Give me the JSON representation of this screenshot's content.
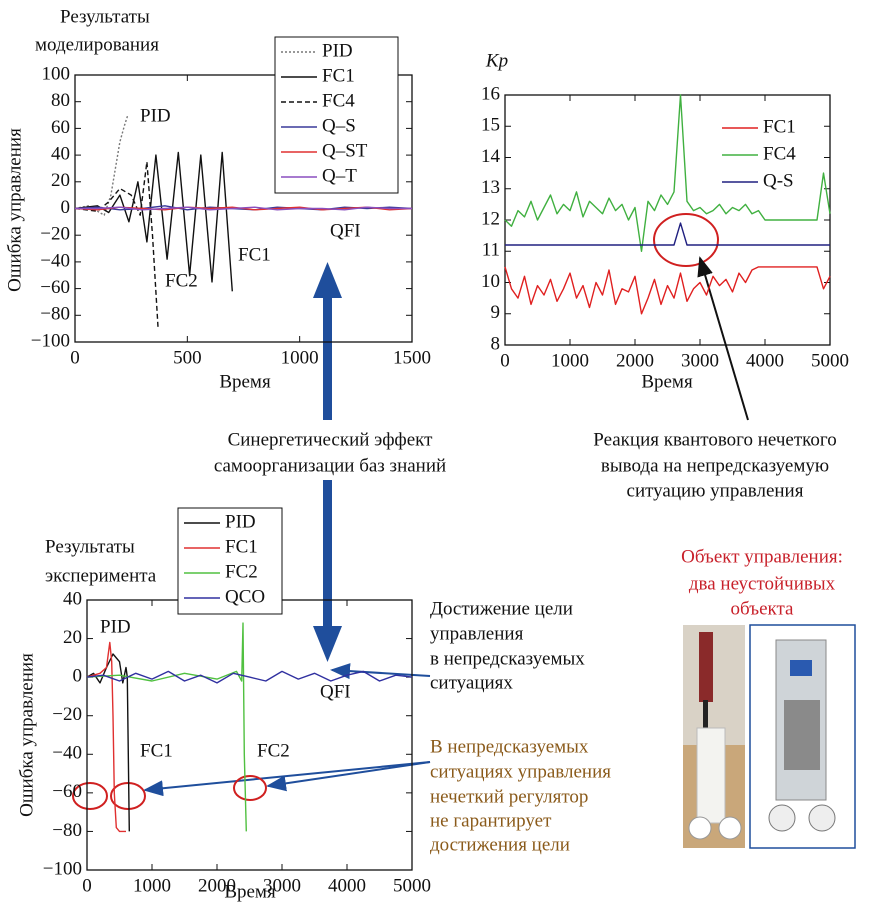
{
  "chart_data": [
    {
      "type": "line",
      "title": [
        "Результаты",
        "моделирования"
      ],
      "ylabel": "Ошибка управления",
      "xlabel": "Время",
      "xlim": [
        0,
        1500
      ],
      "ylim": [
        -100,
        100
      ],
      "xticks": [
        0,
        500,
        1000,
        1500
      ],
      "yticks": [
        {
          "value": -100,
          "label": "−100"
        },
        {
          "value": -80,
          "label": "−80"
        },
        {
          "value": -60,
          "label": "−60"
        },
        {
          "value": -40,
          "label": "−40"
        },
        {
          "value": -20,
          "label": "−20"
        },
        0,
        20,
        40,
        60,
        80,
        100
      ],
      "legend": "upper right",
      "legend_box": true,
      "annotations": [
        "PID",
        "FC1",
        "FC2",
        "QFI"
      ],
      "series": [
        {
          "name": "PID",
          "color": "#777777",
          "style": "dotted",
          "x": [
            0,
            60,
            100,
            130,
            160,
            180,
            200,
            220,
            235
          ],
          "values": [
            0,
            2,
            -2,
            -5,
            10,
            30,
            50,
            62,
            70
          ]
        },
        {
          "name": "FC1",
          "color": "#111111",
          "style": "solid",
          "x": [
            0,
            100,
            150,
            200,
            240,
            280,
            320,
            360,
            410,
            460,
            510,
            560,
            610,
            655,
            700
          ],
          "values": [
            0,
            2,
            -3,
            10,
            -10,
            20,
            -25,
            40,
            -38,
            42,
            -50,
            40,
            -55,
            42,
            -62
          ]
        },
        {
          "name": "FC4",
          "color": "#111111",
          "style": "dashed",
          "x": [
            0,
            100,
            150,
            200,
            250,
            290,
            320,
            345,
            370
          ],
          "values": [
            0,
            -2,
            5,
            15,
            10,
            -5,
            35,
            -20,
            -90
          ]
        },
        {
          "name": "Q–S",
          "color": "#3a3a9a",
          "style": "solid",
          "x": [
            0,
            100,
            200,
            300,
            400,
            500,
            600,
            700,
            800,
            900,
            1000,
            1100,
            1200,
            1300,
            1400,
            1500
          ],
          "values": [
            0,
            1,
            -1,
            0,
            2,
            -1,
            1,
            0,
            -1,
            1,
            0,
            -1,
            1,
            0,
            1,
            0
          ]
        },
        {
          "name": "Q–ST",
          "color": "#e03030",
          "style": "solid",
          "x": [
            0,
            100,
            200,
            300,
            400,
            500,
            600,
            700,
            800,
            900,
            1000,
            1100,
            1200,
            1300,
            1400,
            1500
          ],
          "values": [
            0,
            -1,
            1,
            0,
            -1,
            1,
            0,
            1,
            -1,
            0,
            1,
            -1,
            0,
            1,
            -1,
            0
          ]
        },
        {
          "name": "Q–T",
          "color": "#8a4fbf",
          "style": "solid",
          "x": [
            0,
            100,
            200,
            300,
            400,
            500,
            600,
            700,
            800,
            900,
            1000,
            1100,
            1200,
            1300,
            1400,
            1500
          ],
          "values": [
            0,
            0,
            1,
            -1,
            0,
            1,
            -1,
            0,
            1,
            -1,
            0,
            0,
            -1,
            1,
            0,
            0
          ]
        }
      ]
    },
    {
      "type": "line",
      "ylabel": "Kp",
      "xlabel": "Время",
      "xlim": [
        0,
        5000
      ],
      "ylim": [
        8,
        16
      ],
      "xticks": [
        0,
        1000,
        2000,
        3000,
        4000,
        5000
      ],
      "yticks": [
        8,
        9,
        10,
        11,
        12,
        13,
        14,
        15,
        16
      ],
      "legend": "upper right",
      "legend_box": false,
      "x": [
        0,
        100,
        200,
        300,
        400,
        500,
        600,
        700,
        800,
        900,
        1000,
        1100,
        1200,
        1300,
        1400,
        1500,
        1600,
        1700,
        1800,
        1900,
        2000,
        2100,
        2200,
        2300,
        2400,
        2500,
        2600,
        2700,
        2800,
        2900,
        3000,
        3100,
        3200,
        3300,
        3400,
        3500,
        3600,
        3700,
        3800,
        3900,
        4000,
        4100,
        4200,
        4300,
        4400,
        4500,
        4600,
        4700,
        4800,
        4900,
        5000
      ],
      "series": [
        {
          "name": "FC1",
          "color": "#e02020",
          "style": "solid",
          "values": [
            10.5,
            9.8,
            9.5,
            10.2,
            9.3,
            9.9,
            9.6,
            10.1,
            9.4,
            9.8,
            10.3,
            9.5,
            9.9,
            9.2,
            10.0,
            9.6,
            10.4,
            9.3,
            9.8,
            9.7,
            10.2,
            9.0,
            9.5,
            10.1,
            9.3,
            9.9,
            9.5,
            10.3,
            9.4,
            9.8,
            10.0,
            9.6,
            10.2,
            9.9,
            10.1,
            9.7,
            10.3,
            10.0,
            10.4,
            10.5,
            10.5,
            10.5,
            10.5,
            10.5,
            10.5,
            10.5,
            10.5,
            10.5,
            10.5,
            9.8,
            10.2
          ]
        },
        {
          "name": "FC4",
          "color": "#40b040",
          "style": "solid",
          "values": [
            12,
            11.8,
            12.3,
            12.1,
            12.6,
            12.0,
            12.4,
            12.8,
            12.2,
            12.5,
            12.3,
            12.9,
            12.1,
            12.6,
            12.4,
            12.2,
            12.7,
            12.3,
            12.5,
            12.0,
            12.4,
            11.0,
            12.6,
            12.3,
            12.8,
            12.5,
            12.9,
            16.0,
            12.6,
            12.3,
            12.4,
            12.2,
            12.3,
            12.5,
            12.2,
            12.4,
            12.3,
            12.5,
            12.2,
            12.3,
            12.0,
            12.0,
            12.0,
            12.0,
            12.0,
            12.0,
            12.0,
            12.0,
            12.0,
            13.5,
            12.2
          ]
        },
        {
          "name": "Q-S",
          "color": "#202080",
          "style": "solid",
          "values": [
            11.2,
            11.2,
            11.2,
            11.2,
            11.2,
            11.2,
            11.2,
            11.2,
            11.2,
            11.2,
            11.2,
            11.2,
            11.2,
            11.2,
            11.2,
            11.2,
            11.2,
            11.2,
            11.2,
            11.2,
            11.2,
            11.2,
            11.2,
            11.2,
            11.2,
            11.2,
            11.2,
            11.9,
            11.2,
            11.2,
            11.2,
            11.2,
            11.2,
            11.2,
            11.2,
            11.2,
            11.2,
            11.2,
            11.2,
            11.2,
            11.2,
            11.2,
            11.2,
            11.2,
            11.2,
            11.2,
            11.2,
            11.2,
            11.2,
            11.2,
            11.2
          ]
        }
      ]
    },
    {
      "type": "line",
      "title": [
        "Результаты",
        "эксперимента"
      ],
      "ylabel": "Ошибка управления",
      "xlabel": "Время",
      "xlim": [
        0,
        5000
      ],
      "ylim": [
        -100,
        40
      ],
      "xticks": [
        0,
        1000,
        2000,
        3000,
        4000,
        5000
      ],
      "yticks": [
        {
          "value": -100,
          "label": "−100"
        },
        {
          "value": -80,
          "label": "−80"
        },
        {
          "value": -60,
          "label": "−60"
        },
        {
          "value": -40,
          "label": "−40"
        },
        {
          "value": -20,
          "label": "−20"
        },
        0,
        20,
        40
      ],
      "legend": "upper center",
      "legend_box": true,
      "annotations": [
        "PID",
        "FC1",
        "FC2",
        "QFI"
      ],
      "series": [
        {
          "name": "PID",
          "color": "#111111",
          "style": "solid",
          "x": [
            0,
            100,
            200,
            300,
            400,
            500,
            550,
            600,
            620,
            650
          ],
          "values": [
            0,
            2,
            -3,
            5,
            12,
            8,
            -3,
            5,
            0,
            -80
          ]
        },
        {
          "name": "FC1",
          "color": "#e03030",
          "style": "solid",
          "x": [
            0,
            200,
            300,
            350,
            380,
            400,
            420,
            450,
            500,
            600
          ],
          "values": [
            0,
            2,
            5,
            18,
            8,
            -20,
            -60,
            -78,
            -80,
            -80
          ]
        },
        {
          "name": "FC2",
          "color": "#50c040",
          "style": "solid",
          "x": [
            0,
            500,
            1000,
            1500,
            2000,
            2300,
            2380,
            2400,
            2420,
            2450
          ],
          "values": [
            0,
            1,
            -2,
            2,
            -1,
            3,
            -2,
            28,
            -40,
            -80
          ]
        },
        {
          "name": "QCO",
          "color": "#3030a0",
          "style": "solid",
          "x": [
            0,
            250,
            500,
            750,
            1000,
            1250,
            1500,
            1750,
            2000,
            2250,
            2500,
            2750,
            3000,
            3250,
            3500,
            3750,
            4000,
            4250,
            4500,
            4750,
            5000
          ],
          "values": [
            0,
            1,
            -2,
            2,
            -1,
            3,
            -2,
            1,
            -3,
            2,
            0,
            -2,
            3,
            -1,
            2,
            -2,
            1,
            3,
            -2,
            1,
            0
          ]
        }
      ]
    }
  ],
  "annotations": {
    "synergy": [
      "Синергетический эффект",
      "самоорганизации баз знаний"
    ],
    "reaction": [
      "Реакция квантового нечеткого",
      "вывода на непредсказуемую",
      "ситуацию управления"
    ],
    "goal": [
      "Достижение цели",
      "управления",
      "в непредсказуемых",
      "ситуациях"
    ],
    "no_guarantee": [
      "В непредсказуемых",
      "ситуациях управления",
      "нечеткий регулятор",
      "не гарантирует",
      "достижения цели"
    ],
    "object": [
      "Объект управления:",
      "два неустойчивых",
      "объекта"
    ]
  }
}
